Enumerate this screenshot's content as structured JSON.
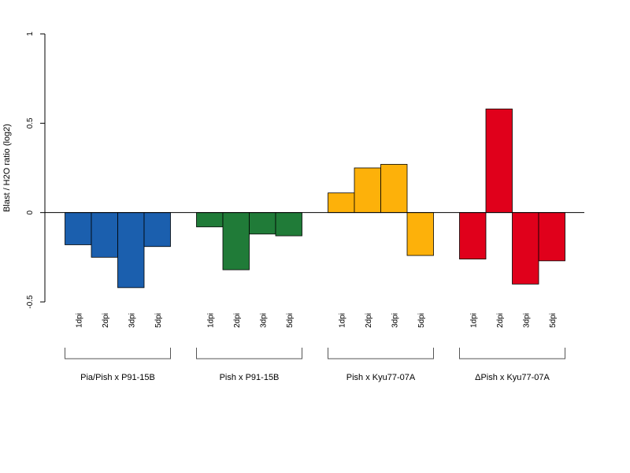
{
  "chart_data": {
    "type": "bar",
    "title": "",
    "xlabel": "",
    "ylabel": "Blast / H2O ratio (log2)",
    "ylim": [
      -0.5,
      1
    ],
    "yticks": [
      -0.5,
      0,
      0.5,
      1
    ],
    "ytick_labels": [
      "-0.5",
      "0",
      "0.5",
      "1"
    ],
    "grid": false,
    "legend": "none",
    "baseline": 0,
    "groups": [
      {
        "name": "Pia/Pish x P91-15B",
        "color": "#1b5fae",
        "categories": [
          "1dpi",
          "2dpi",
          "3dpi",
          "5dpi"
        ],
        "values": [
          -0.18,
          -0.25,
          -0.42,
          -0.19
        ]
      },
      {
        "name": "Pish x P91-15B",
        "color": "#207b38",
        "categories": [
          "1dpi",
          "2dpi",
          "3dpi",
          "5dpi"
        ],
        "values": [
          -0.08,
          -0.32,
          -0.12,
          -0.13
        ]
      },
      {
        "name": "Pish x Kyu77-07A",
        "color": "#fdb10a",
        "categories": [
          "1dpi",
          "2dpi",
          "3dpi",
          "5dpi"
        ],
        "values": [
          0.11,
          0.25,
          0.27,
          -0.24
        ]
      },
      {
        "name": "ΔPish x Kyu77-07A",
        "color": "#e0001b",
        "categories": [
          "1dpi",
          "2dpi",
          "3dpi",
          "5dpi"
        ],
        "values": [
          -0.26,
          0.58,
          -0.4,
          -0.27
        ]
      }
    ]
  }
}
